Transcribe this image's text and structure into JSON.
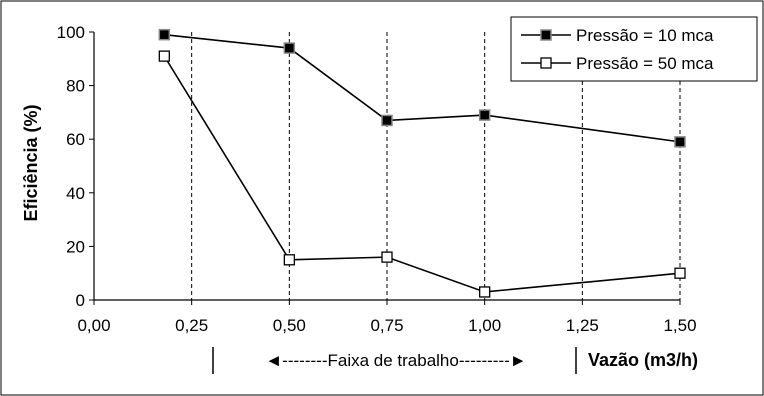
{
  "chart_data": {
    "type": "line",
    "title": "",
    "xlabel": "Vazão (m3/h)",
    "ylabel": "Eficiência (%)",
    "xlim": [
      0,
      1.5
    ],
    "ylim": [
      0,
      100
    ],
    "x_ticks": [
      0,
      0.25,
      0.5,
      0.75,
      1.0,
      1.25,
      1.5
    ],
    "x_tick_labels": [
      "0,00",
      "0,25",
      "0,50",
      "0,75",
      "1,00",
      "1,25",
      "1,50"
    ],
    "y_ticks": [
      0,
      20,
      40,
      60,
      80,
      100
    ],
    "y_tick_labels": [
      "0",
      "20",
      "40",
      "60",
      "80",
      "100"
    ],
    "grid": "vertical dashed",
    "legend_position": "top-right",
    "series": [
      {
        "name": "Pressão = 10 mca",
        "marker": "filled-square",
        "x": [
          0.18,
          0.5,
          0.75,
          1.0,
          1.5
        ],
        "y": [
          99,
          94,
          67,
          69,
          59
        ]
      },
      {
        "name": "Pressão = 50 mca",
        "marker": "open-square",
        "x": [
          0.18,
          0.5,
          0.75,
          1.0,
          1.5
        ],
        "y": [
          91,
          15,
          16,
          3,
          10
        ]
      }
    ],
    "annotations": {
      "working_range": "◄--------Faixa de trabalho---------►",
      "working_range_x": [
        0.3,
        1.28
      ]
    }
  }
}
